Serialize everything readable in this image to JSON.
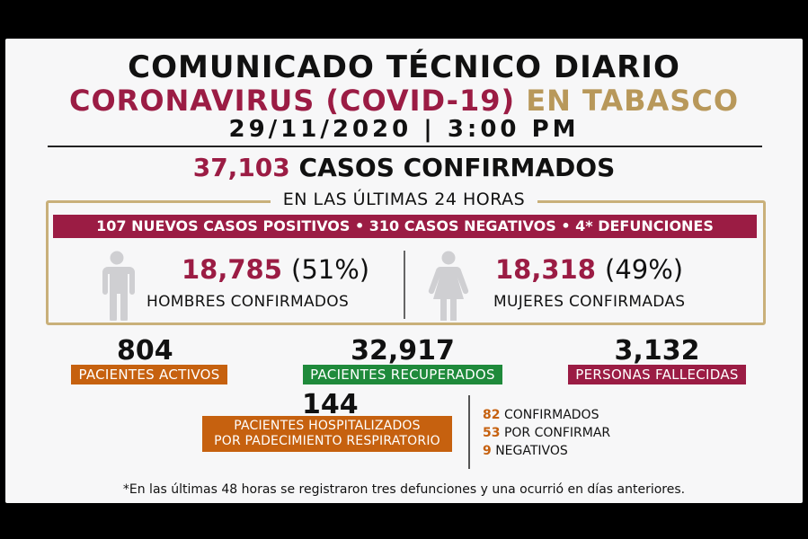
{
  "header": {
    "title": "COMUNICADO TÉCNICO DIARIO",
    "subtitle_wine": "CORONAVIRUS (COVID-19)",
    "subtitle_gold": "EN TABASCO",
    "date": "29/11/2020",
    "separator": "|",
    "time": "3:00 PM"
  },
  "confirmed": {
    "number": "37,103",
    "label": "CASOS CONFIRMADOS"
  },
  "last24": {
    "heading": "EN LAS ÚLTIMAS 24 HORAS",
    "banner": "107 NUEVOS CASOS POSITIVOS • 310 CASOS NEGATIVOS • 4* DEFUNCIONES"
  },
  "men": {
    "number": "18,785",
    "percent": "(51%)",
    "label": "HOMBRES CONFIRMADOS",
    "icon": "male-person-icon"
  },
  "women": {
    "number": "18,318",
    "percent": "(49%)",
    "label": "MUJERES CONFIRMADAS",
    "icon": "female-person-icon"
  },
  "stats": {
    "active": {
      "number": "804",
      "label": "PACIENTES ACTIVOS",
      "color": "#c6610f"
    },
    "recovered": {
      "number": "32,917",
      "label": "PACIENTES RECUPERADOS",
      "color": "#1f8a3b"
    },
    "deceased": {
      "number": "3,132",
      "label": "PERSONAS FALLECIDAS",
      "color": "#9b1c44"
    }
  },
  "hospitalized": {
    "number": "144",
    "label_line1": "PACIENTES HOSPITALIZADOS",
    "label_line2": "POR PADECIMIENTO RESPIRATORIO",
    "breakdown": [
      {
        "count": "82",
        "label": "CONFIRMADOS"
      },
      {
        "count": "53",
        "label": "POR CONFIRMAR"
      },
      {
        "count": "9",
        "label": "NEGATIVOS"
      }
    ]
  },
  "footnote": "*En las últimas 48 horas se registraron tres defunciones y una ocurrió en días anteriores.",
  "colors": {
    "wine": "#9b1c44",
    "gold": "#b8985a",
    "orange": "#c6610f",
    "green": "#1f8a3b"
  }
}
